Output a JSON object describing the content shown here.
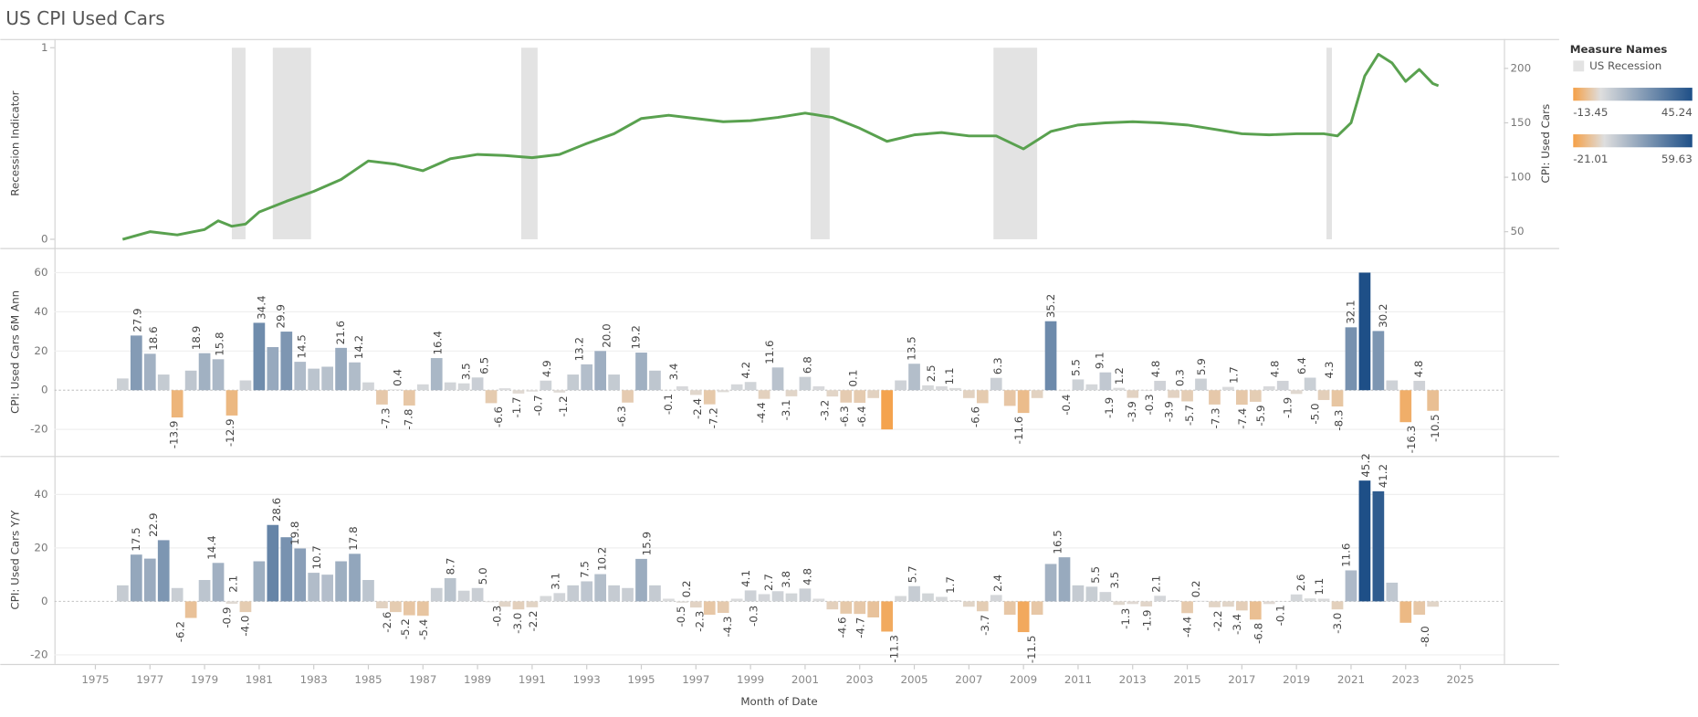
{
  "dashboard_title": "US CPI Used Cars",
  "legend": {
    "title": "Measure Names",
    "item": "US Recession",
    "item_color": "#e3e3e3"
  },
  "chart_data": [
    {
      "type": "line",
      "ylabel": "Recession Indicator",
      "ylim": [
        -0.04,
        1.04
      ],
      "yticks": [
        0,
        1
      ],
      "y2label": "CPI: Used Cars",
      "y2lim": [
        36,
        226
      ],
      "y2ticks": [
        50,
        100,
        150,
        200
      ],
      "xlim": [
        1973.5,
        2026.6
      ],
      "recessions": {
        "name": "US Recession",
        "color": "#e3e3e3",
        "value": 1,
        "periods": [
          [
            1980.0,
            1980.5
          ],
          [
            1981.5,
            1982.9
          ],
          [
            1990.6,
            1991.2
          ],
          [
            2001.2,
            2001.9
          ],
          [
            2007.9,
            2009.5
          ],
          [
            2020.1,
            2020.3
          ]
        ]
      },
      "series": [
        {
          "name": "CPI: Used Cars",
          "color": "#59a14f",
          "axis": "y2",
          "x": [
            1976,
            1977,
            1978,
            1979,
            1979.5,
            1980,
            1980.5,
            1981,
            1982,
            1983,
            1984,
            1985,
            1986,
            1987,
            1988,
            1989,
            1990,
            1991,
            1992,
            1993,
            1994,
            1995,
            1996,
            1997,
            1998,
            1999,
            2000,
            2001,
            2002,
            2003,
            2004,
            2005,
            2006,
            2007,
            2008,
            2009,
            2010,
            2011,
            2012,
            2013,
            2014,
            2015,
            2016,
            2017,
            2018,
            2019,
            2020,
            2020.5,
            2021,
            2021.5,
            2022,
            2022.5,
            2023,
            2023.5,
            2024,
            2024.2
          ],
          "values": [
            43,
            50,
            47,
            52,
            60,
            55,
            57,
            68,
            78,
            87,
            98,
            115,
            112,
            106,
            117,
            121,
            120,
            118,
            121,
            131,
            140,
            154,
            157,
            154,
            151,
            152,
            155,
            159,
            155,
            145,
            133,
            139,
            141,
            138,
            138,
            126,
            142,
            148,
            150,
            151,
            150,
            148,
            144,
            140,
            139,
            140,
            140,
            138,
            150,
            193,
            213,
            205,
            188,
            199,
            186,
            184
          ]
        }
      ]
    },
    {
      "type": "bar",
      "ylabel": "CPI: Used Cars 6M Ann",
      "ylim": [
        -33,
        72
      ],
      "yticks": [
        -20,
        0,
        20,
        40,
        60
      ],
      "grid": true,
      "xlim": [
        1973.5,
        2026.6
      ],
      "color_range": [
        -21.01,
        59.63
      ],
      "palette": [
        "#f5a047",
        "#dedede",
        "#1e4f87"
      ],
      "x": [
        1976,
        1976.5,
        1977,
        1977.5,
        1978,
        1978.5,
        1979,
        1979.5,
        1980,
        1980.5,
        1981,
        1981.5,
        1982,
        1982.5,
        1983,
        1983.5,
        1984,
        1984.5,
        1985,
        1985.5,
        1986,
        1986.5,
        1987,
        1987.5,
        1988,
        1988.5,
        1989,
        1989.5,
        1990,
        1990.5,
        1991,
        1991.5,
        1992,
        1992.5,
        1993,
        1993.5,
        1994,
        1994.5,
        1995,
        1995.5,
        1996,
        1996.5,
        1997,
        1997.5,
        1998,
        1998.5,
        1999,
        1999.5,
        2000,
        2000.5,
        2001,
        2001.5,
        2002,
        2002.5,
        2003,
        2003.5,
        2004,
        2004.5,
        2005,
        2005.5,
        2006,
        2006.5,
        2007,
        2007.5,
        2008,
        2008.5,
        2009,
        2009.5,
        2010,
        2010.5,
        2011,
        2011.5,
        2012,
        2012.5,
        2013,
        2013.5,
        2014,
        2014.5,
        2015,
        2015.5,
        2016,
        2016.5,
        2017,
        2017.5,
        2018,
        2018.5,
        2019,
        2019.5,
        2020,
        2020.5,
        2021,
        2021.5,
        2022,
        2022.5,
        2023,
        2023.5,
        2024
      ],
      "values": [
        6,
        27.9,
        18.6,
        8,
        -13.9,
        10,
        18.9,
        15.8,
        -12.9,
        5,
        34.4,
        22,
        29.9,
        14.5,
        11,
        12,
        21.6,
        14.2,
        4,
        -7.3,
        0.4,
        -7.8,
        3,
        16.4,
        4,
        3.5,
        6.5,
        -6.6,
        1,
        -1.7,
        -0.7,
        4.9,
        -1.2,
        8,
        13.2,
        20.0,
        8,
        -6.3,
        19.2,
        10,
        -0.1,
        2,
        -2.4,
        -7.2,
        -1,
        3,
        4.2,
        -4.4,
        11.6,
        -3.1,
        6.8,
        2,
        -3.2,
        -6.3,
        -6.4,
        -4,
        -20,
        5,
        13.5,
        2.5,
        2,
        1.1,
        -4,
        -6.6,
        6.3,
        -8,
        -11.6,
        -4,
        35.2,
        -0.4,
        5.5,
        3,
        9.1,
        1.2,
        -3.9,
        -0.3,
        4.8,
        -3.9,
        -5.7,
        5.9,
        -7.3,
        1.7,
        -7.4,
        -5.9,
        2,
        4.8,
        -1.9,
        6.4,
        -5.0,
        -8.3,
        32.1,
        60,
        30.2,
        5,
        -16.3,
        4.8,
        -10.5
      ],
      "labels": [
        {
          "x": 1976.55,
          "value": 27.9
        },
        {
          "x": 1977.14,
          "value": 18.6
        },
        {
          "x": 1977.9,
          "value": -13.9
        },
        {
          "x": 1978.72,
          "value": 18.9
        },
        {
          "x": 1979.56,
          "value": 15.8
        },
        {
          "x": 1979.95,
          "value": -12.9
        },
        {
          "x": 1981.1,
          "value": 34.4
        },
        {
          "x": 1981.8,
          "value": 29.9
        },
        {
          "x": 1982.57,
          "value": 14.5
        },
        {
          "x": 1983.99,
          "value": 21.6
        },
        {
          "x": 1984.67,
          "value": 14.2
        },
        {
          "x": 1985.66,
          "value": -7.3
        },
        {
          "x": 1986.09,
          "value": 0.4
        },
        {
          "x": 1986.49,
          "value": -7.8
        },
        {
          "x": 1987.56,
          "value": 16.4
        },
        {
          "x": 1988.59,
          "value": 3.5
        },
        {
          "x": 1989.26,
          "value": 6.5
        },
        {
          "x": 1989.78,
          "value": -6.6
        },
        {
          "x": 1990.45,
          "value": -1.7
        },
        {
          "x": 1991.24,
          "value": -0.7
        },
        {
          "x": 1991.56,
          "value": 4.9
        },
        {
          "x": 1992.16,
          "value": -1.2
        },
        {
          "x": 1992.75,
          "value": 13.2
        },
        {
          "x": 1993.74,
          "value": 20,
          "label": "20.0"
        },
        {
          "x": 1994.3,
          "value": -6.3
        },
        {
          "x": 1994.81,
          "value": 19.2
        },
        {
          "x": 1996.0,
          "value": -0.1
        },
        {
          "x": 1996.2,
          "value": 3.4
        },
        {
          "x": 1997.07,
          "value": -2.4
        },
        {
          "x": 1997.66,
          "value": -7.2
        },
        {
          "x": 1998.85,
          "value": 4.2
        },
        {
          "x": 1999.41,
          "value": -4.4
        },
        {
          "x": 1999.72,
          "value": 11.6
        },
        {
          "x": 2000.32,
          "value": -3.1
        },
        {
          "x": 2001.11,
          "value": 6.8
        },
        {
          "x": 2001.74,
          "value": -3.2
        },
        {
          "x": 2002.46,
          "value": -6.3
        },
        {
          "x": 2002.77,
          "value": 0.1
        },
        {
          "x": 2003.09,
          "value": -6.4
        },
        {
          "x": 2004.91,
          "value": 13.5
        },
        {
          "x": 2005.63,
          "value": 2.5
        },
        {
          "x": 2006.3,
          "value": 1.1
        },
        {
          "x": 2007.25,
          "value": -6.6
        },
        {
          "x": 2008.08,
          "value": 6.3
        },
        {
          "x": 2008.84,
          "value": -11.6
        },
        {
          "x": 2010.02,
          "value": 35.2
        },
        {
          "x": 2010.58,
          "value": -0.4
        },
        {
          "x": 2010.93,
          "value": 5.5
        },
        {
          "x": 2011.81,
          "value": 9.1
        },
        {
          "x": 2012.16,
          "value": -1.9
        },
        {
          "x": 2012.52,
          "value": 1.2
        },
        {
          "x": 2013.0,
          "value": -3.9
        },
        {
          "x": 2013.63,
          "value": -0.3
        },
        {
          "x": 2013.87,
          "value": 4.8
        },
        {
          "x": 2014.34,
          "value": -3.9
        },
        {
          "x": 2014.74,
          "value": 0.3
        },
        {
          "x": 2015.1,
          "value": -5.7
        },
        {
          "x": 2015.53,
          "value": 5.9
        },
        {
          "x": 2016.05,
          "value": -7.3
        },
        {
          "x": 2016.72,
          "value": 1.7
        },
        {
          "x": 2017.04,
          "value": -7.4
        },
        {
          "x": 2017.71,
          "value": -5.9
        },
        {
          "x": 2018.23,
          "value": 4.8
        },
        {
          "x": 2018.7,
          "value": -1.9
        },
        {
          "x": 2019.22,
          "value": 6.4
        },
        {
          "x": 2019.69,
          "value": -5,
          "label": "-5.0"
        },
        {
          "x": 2020.21,
          "value": 4.3
        },
        {
          "x": 2020.56,
          "value": -8.3
        },
        {
          "x": 2021.0,
          "value": 32.1
        },
        {
          "x": 2022.19,
          "value": 30.2
        },
        {
          "x": 2023.22,
          "value": -16.3
        },
        {
          "x": 2023.5,
          "value": 4.8
        },
        {
          "x": 2024.09,
          "value": -10.5
        }
      ]
    },
    {
      "type": "bar",
      "ylabel": "CPI: Used Cars Y/Y",
      "ylim": [
        -23,
        54
      ],
      "yticks": [
        -20,
        0,
        20,
        40
      ],
      "grid": true,
      "xlim": [
        1973.5,
        2026.6
      ],
      "xlabel": "Month of Date",
      "xticks": [
        1975,
        1977,
        1979,
        1981,
        1983,
        1985,
        1987,
        1989,
        1991,
        1993,
        1995,
        1997,
        1999,
        2001,
        2003,
        2005,
        2007,
        2009,
        2011,
        2013,
        2015,
        2017,
        2019,
        2021,
        2023,
        2025
      ],
      "color_range": [
        -13.45,
        45.24
      ],
      "palette": [
        "#f5a047",
        "#dedede",
        "#1e4f87"
      ],
      "x": [
        1976,
        1976.5,
        1977,
        1977.5,
        1978,
        1978.5,
        1979,
        1979.5,
        1980,
        1980.5,
        1981,
        1981.5,
        1982,
        1982.5,
        1983,
        1983.5,
        1984,
        1984.5,
        1985,
        1985.5,
        1986,
        1986.5,
        1987,
        1987.5,
        1988,
        1988.5,
        1989,
        1989.5,
        1990,
        1990.5,
        1991,
        1991.5,
        1992,
        1992.5,
        1993,
        1993.5,
        1994,
        1994.5,
        1995,
        1995.5,
        1996,
        1996.5,
        1997,
        1997.5,
        1998,
        1998.5,
        1999,
        1999.5,
        2000,
        2000.5,
        2001,
        2001.5,
        2002,
        2002.5,
        2003,
        2003.5,
        2004,
        2004.5,
        2005,
        2005.5,
        2006,
        2006.5,
        2007,
        2007.5,
        2008,
        2008.5,
        2009,
        2009.5,
        2010,
        2010.5,
        2011,
        2011.5,
        2012,
        2012.5,
        2013,
        2013.5,
        2014,
        2014.5,
        2015,
        2015.5,
        2016,
        2016.5,
        2017,
        2017.5,
        2018,
        2018.5,
        2019,
        2019.5,
        2020,
        2020.5,
        2021,
        2021.5,
        2022,
        2022.5,
        2023,
        2023.5,
        2024
      ],
      "values": [
        6,
        17.5,
        16,
        22.9,
        5,
        -6.2,
        8,
        14.4,
        -0.9,
        -4.0,
        15,
        28.6,
        24,
        19.8,
        10.7,
        10,
        15,
        17.8,
        8,
        -2.6,
        -4,
        -5.2,
        -5.4,
        5,
        8.7,
        4,
        5.0,
        -0.3,
        -2,
        -3.0,
        -2.2,
        2,
        3.1,
        6,
        7.5,
        10.2,
        6,
        5,
        15.9,
        6,
        1,
        -0.5,
        -2.3,
        -5,
        -4.3,
        1,
        4.1,
        2.7,
        3.8,
        3,
        4.8,
        1,
        -3,
        -4.6,
        -4.7,
        -6,
        -11.3,
        2,
        5.7,
        3,
        1.7,
        0.5,
        -2,
        -3.7,
        2.4,
        -5,
        -11.5,
        -5,
        14,
        16.5,
        6,
        5.5,
        3.5,
        -1.3,
        -1,
        -1.9,
        2.1,
        0.5,
        -4.4,
        0.2,
        -2.2,
        -2,
        -3.4,
        -6.8,
        -1,
        -0.1,
        2.6,
        1.1,
        1,
        -3.0,
        11.6,
        45.2,
        41.2,
        7,
        -8.0,
        -5,
        -2
      ],
      "labels": [
        {
          "x": 1976.5,
          "value": 17.5
        },
        {
          "x": 1977.14,
          "value": 22.9
        },
        {
          "x": 1978.13,
          "value": -6.2
        },
        {
          "x": 1979.28,
          "value": 14.4
        },
        {
          "x": 1979.83,
          "value": -0.9
        },
        {
          "x": 1980.07,
          "value": 2.1
        },
        {
          "x": 1980.51,
          "value": -4,
          "label": "-4.0"
        },
        {
          "x": 1981.66,
          "value": 28.6
        },
        {
          "x": 1982.33,
          "value": 19.8
        },
        {
          "x": 1983.12,
          "value": 10.7
        },
        {
          "x": 1984.47,
          "value": 17.8
        },
        {
          "x": 1985.7,
          "value": -2.6
        },
        {
          "x": 1986.37,
          "value": -5.2
        },
        {
          "x": 1987.04,
          "value": -5.4
        },
        {
          "x": 1988.03,
          "value": 8.7
        },
        {
          "x": 1989.22,
          "value": 5,
          "label": "5.0"
        },
        {
          "x": 1989.74,
          "value": -0.3
        },
        {
          "x": 1990.49,
          "value": -3,
          "label": "-3.0"
        },
        {
          "x": 1991.05,
          "value": -2.2
        },
        {
          "x": 1991.88,
          "value": 3.1
        },
        {
          "x": 1992.95,
          "value": 7.5
        },
        {
          "x": 1993.58,
          "value": 10.2
        },
        {
          "x": 1995.21,
          "value": 15.9
        },
        {
          "x": 1996.47,
          "value": -0.5
        },
        {
          "x": 1996.67,
          "value": 0.2
        },
        {
          "x": 1997.15,
          "value": -2.3
        },
        {
          "x": 1998.18,
          "value": -4.3
        },
        {
          "x": 1998.85,
          "value": 4.1
        },
        {
          "x": 1999.13,
          "value": -0.3
        },
        {
          "x": 1999.68,
          "value": 2.7
        },
        {
          "x": 2000.32,
          "value": 3.8
        },
        {
          "x": 2001.11,
          "value": 4.8
        },
        {
          "x": 2002.38,
          "value": -4.6
        },
        {
          "x": 2003.05,
          "value": -4.7
        },
        {
          "x": 2004.28,
          "value": -11.3
        },
        {
          "x": 2004.95,
          "value": 5.7
        },
        {
          "x": 2006.34,
          "value": 1.7
        },
        {
          "x": 2007.61,
          "value": -3.7
        },
        {
          "x": 2008.08,
          "value": 2.4
        },
        {
          "x": 2009.31,
          "value": -11.5
        },
        {
          "x": 2010.26,
          "value": 16.5
        },
        {
          "x": 2011.65,
          "value": 5.5
        },
        {
          "x": 2012.36,
          "value": 3.5
        },
        {
          "x": 2012.76,
          "value": -1.3
        },
        {
          "x": 2013.55,
          "value": -1.9
        },
        {
          "x": 2013.87,
          "value": 2.1
        },
        {
          "x": 2015.02,
          "value": -4.4
        },
        {
          "x": 2015.33,
          "value": 0.2
        },
        {
          "x": 2016.13,
          "value": -2.2
        },
        {
          "x": 2016.84,
          "value": -3.4
        },
        {
          "x": 2017.63,
          "value": -6.8
        },
        {
          "x": 2018.42,
          "value": -0.1
        },
        {
          "x": 2019.18,
          "value": 2.6
        },
        {
          "x": 2019.85,
          "value": 1.1
        },
        {
          "x": 2020.52,
          "value": -3,
          "label": "-3.0"
        },
        {
          "x": 2020.84,
          "value": 11.6
        },
        {
          "x": 2021.55,
          "value": 45.2
        },
        {
          "x": 2022.19,
          "value": 41.2
        },
        {
          "x": 2023.73,
          "value": -8,
          "label": "-8.0"
        }
      ]
    }
  ]
}
